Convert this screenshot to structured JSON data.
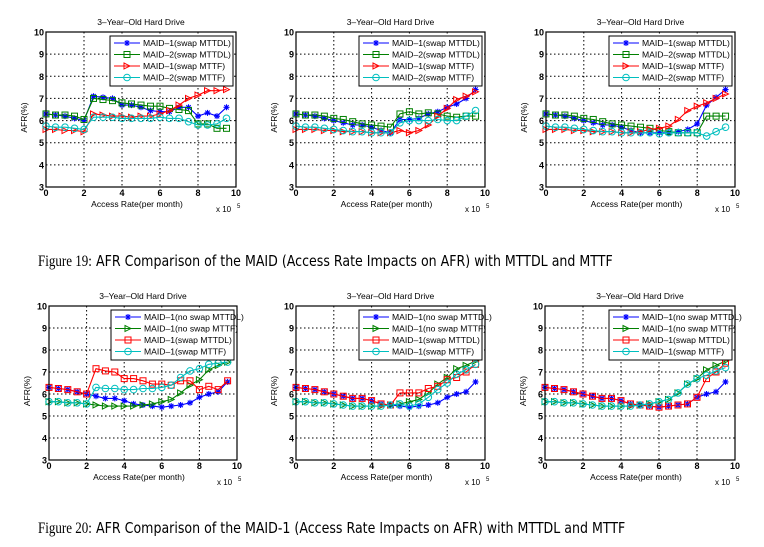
{
  "figures": [
    {
      "label": "Figure 19:",
      "text": "AFR Comparison of the MAID (Access Rate Impacts on AFR) with MTTDL and MTTF"
    },
    {
      "label": "Figure 20:",
      "text": "AFR Comparison of the MAID-1 (Access Rate Impacts on AFR) with MTTDL and MTTF"
    }
  ],
  "colors": {
    "blue": "#0000ff",
    "green": "#008000",
    "red": "#ff0000",
    "cyan": "#00bfbf"
  },
  "chart_data": [
    {
      "type": "line",
      "title": "3–Year–Old Hard Drive",
      "xlabel": "Access Rate(per month)",
      "ylabel": "AFR(%)",
      "x_multiplier": "x 10",
      "x_exponent": "5",
      "xlim": [
        0,
        10
      ],
      "ylim": [
        3,
        10
      ],
      "xticks": [
        "0",
        "2",
        "4",
        "6",
        "8",
        "10"
      ],
      "yticks": [
        "3",
        "4",
        "5",
        "6",
        "7",
        "8",
        "9",
        "10"
      ],
      "grid": true,
      "legend": "top-right",
      "x": [
        0,
        0.5,
        1,
        1.5,
        2,
        2.5,
        3,
        3.5,
        4,
        4.5,
        5,
        5.5,
        6,
        6.5,
        7,
        7.5,
        8,
        8.5,
        9,
        9.5
      ],
      "series": [
        {
          "name": "MAID–1(swap MTTDL)",
          "color": "#0000ff",
          "marker": "star",
          "values": [
            6.3,
            6.25,
            6.2,
            6.1,
            6.0,
            7.1,
            7.05,
            7.0,
            6.7,
            6.7,
            6.6,
            6.45,
            6.4,
            6.4,
            6.6,
            6.6,
            6.2,
            6.35,
            6.2,
            6.6
          ]
        },
        {
          "name": "MAID–2(swap MTTDL)",
          "color": "#008000",
          "marker": "square",
          "values": [
            6.3,
            6.25,
            6.25,
            6.2,
            6.05,
            7.0,
            6.95,
            6.9,
            6.8,
            6.75,
            6.7,
            6.65,
            6.65,
            6.55,
            6.5,
            6.45,
            5.85,
            5.85,
            5.65,
            5.65
          ]
        },
        {
          "name": "MAID–1(swap MTTF)",
          "color": "#ff0000",
          "marker": "triangle-right",
          "values": [
            5.6,
            5.6,
            5.55,
            5.55,
            5.5,
            6.3,
            6.25,
            6.2,
            6.2,
            6.15,
            6.2,
            6.2,
            6.3,
            6.45,
            6.7,
            7.0,
            7.15,
            7.35,
            7.35,
            7.4
          ]
        },
        {
          "name": "MAID–2(swap MTTF)",
          "color": "#00bfbf",
          "marker": "circle",
          "values": [
            5.75,
            5.7,
            5.7,
            5.65,
            5.6,
            6.15,
            6.15,
            6.15,
            6.1,
            6.1,
            6.1,
            6.1,
            6.15,
            6.1,
            6.1,
            5.95,
            5.8,
            5.8,
            5.85,
            6.1
          ]
        }
      ]
    },
    {
      "type": "line",
      "title": "3–Year–Old Hard Drive",
      "xlabel": "Access Rate(per month)",
      "ylabel": "AFR(%)",
      "x_multiplier": "x 10",
      "x_exponent": "5",
      "xlim": [
        0,
        10
      ],
      "ylim": [
        3,
        10
      ],
      "xticks": [
        "0",
        "2",
        "4",
        "6",
        "8",
        "10"
      ],
      "yticks": [
        "3",
        "4",
        "5",
        "6",
        "7",
        "8",
        "9",
        "10"
      ],
      "grid": true,
      "legend": "top-right",
      "x": [
        0,
        0.5,
        1,
        1.5,
        2,
        2.5,
        3,
        3.5,
        4,
        4.5,
        5,
        5.5,
        6,
        6.5,
        7,
        7.5,
        8,
        8.5,
        9,
        9.5
      ],
      "series": [
        {
          "name": "MAID–1(swap MTTDL)",
          "color": "#0000ff",
          "marker": "star",
          "values": [
            6.3,
            6.25,
            6.2,
            6.1,
            6.0,
            5.9,
            5.8,
            5.8,
            5.7,
            5.55,
            5.45,
            6.05,
            6.05,
            6.1,
            6.3,
            6.4,
            6.6,
            6.75,
            7.0,
            7.4
          ]
        },
        {
          "name": "MAID–2(swap MTTDL)",
          "color": "#008000",
          "marker": "square",
          "values": [
            6.3,
            6.25,
            6.25,
            6.2,
            6.1,
            6.05,
            5.95,
            5.85,
            5.8,
            5.75,
            5.7,
            6.3,
            6.4,
            6.3,
            6.35,
            6.3,
            6.2,
            6.15,
            6.2,
            6.2
          ]
        },
        {
          "name": "MAID–1(swap MTTF)",
          "color": "#ff0000",
          "marker": "triangle-right",
          "values": [
            5.6,
            5.6,
            5.6,
            5.55,
            5.55,
            5.5,
            5.5,
            5.5,
            5.45,
            5.45,
            5.45,
            5.55,
            5.45,
            5.55,
            5.8,
            6.2,
            6.55,
            6.95,
            7.1,
            7.3
          ]
        },
        {
          "name": "MAID–2(swap MTTF)",
          "color": "#00bfbf",
          "marker": "circle",
          "values": [
            5.75,
            5.7,
            5.7,
            5.65,
            5.6,
            5.55,
            5.5,
            5.5,
            5.45,
            5.45,
            5.45,
            5.9,
            6.0,
            6.0,
            6.0,
            6.05,
            6.0,
            6.0,
            6.2,
            6.45
          ]
        }
      ]
    },
    {
      "type": "line",
      "title": "3–Year–Old Hard Drive",
      "xlabel": "Access Rate(per month)",
      "ylabel": "AFR(%)",
      "x_multiplier": "x 10",
      "x_exponent": "5",
      "xlim": [
        0,
        10
      ],
      "ylim": [
        3,
        10
      ],
      "xticks": [
        "0",
        "2",
        "4",
        "6",
        "8",
        "10"
      ],
      "yticks": [
        "3",
        "4",
        "5",
        "6",
        "7",
        "8",
        "9",
        "10"
      ],
      "grid": true,
      "legend": "top-right",
      "x": [
        0,
        0.5,
        1,
        1.5,
        2,
        2.5,
        3,
        3.5,
        4,
        4.5,
        5,
        5.5,
        6,
        6.5,
        7,
        7.5,
        8,
        8.5,
        9,
        9.5
      ],
      "series": [
        {
          "name": "MAID–1(swap MTTDL)",
          "color": "#0000ff",
          "marker": "star",
          "values": [
            6.3,
            6.25,
            6.2,
            6.1,
            6.0,
            5.9,
            5.8,
            5.8,
            5.7,
            5.55,
            5.45,
            5.45,
            5.45,
            5.45,
            5.5,
            5.6,
            5.85,
            6.7,
            7.05,
            7.4
          ]
        },
        {
          "name": "MAID–2(swap MTTDL)",
          "color": "#008000",
          "marker": "square",
          "values": [
            6.3,
            6.25,
            6.25,
            6.2,
            6.1,
            6.05,
            5.95,
            5.85,
            5.8,
            5.75,
            5.7,
            5.65,
            5.55,
            5.5,
            5.45,
            5.45,
            5.45,
            6.2,
            6.2,
            6.2
          ]
        },
        {
          "name": "MAID–1(swap MTTF)",
          "color": "#ff0000",
          "marker": "triangle-right",
          "values": [
            5.6,
            5.6,
            5.6,
            5.55,
            5.55,
            5.5,
            5.5,
            5.5,
            5.45,
            5.45,
            5.5,
            5.6,
            5.65,
            5.75,
            6.05,
            6.45,
            6.65,
            6.8,
            7.0,
            7.2
          ]
        },
        {
          "name": "MAID–2(swap MTTF)",
          "color": "#00bfbf",
          "marker": "circle",
          "values": [
            5.75,
            5.7,
            5.7,
            5.65,
            5.6,
            5.55,
            5.5,
            5.5,
            5.45,
            5.45,
            5.45,
            5.45,
            5.4,
            5.45,
            5.45,
            5.45,
            5.45,
            5.3,
            5.5,
            5.7
          ]
        }
      ]
    },
    {
      "type": "line",
      "title": "3–Year–Old Hard Drive",
      "xlabel": "Access Rate(per month)",
      "ylabel": "AFR(%)",
      "x_multiplier": "x 10",
      "x_exponent": "5",
      "xlim": [
        0,
        10
      ],
      "ylim": [
        3,
        10
      ],
      "xticks": [
        "0",
        "2",
        "4",
        "6",
        "8",
        "10"
      ],
      "yticks": [
        "3",
        "4",
        "5",
        "6",
        "7",
        "8",
        "9",
        "10"
      ],
      "grid": true,
      "legend": "top-right",
      "x": [
        0,
        0.5,
        1,
        1.5,
        2,
        2.5,
        3,
        3.5,
        4,
        4.5,
        5,
        5.5,
        6,
        6.5,
        7,
        7.5,
        8,
        8.5,
        9,
        9.5
      ],
      "series": [
        {
          "name": "MAID–1(no swap MTTDL)",
          "color": "#0000ff",
          "marker": "star",
          "values": [
            6.3,
            6.25,
            6.2,
            6.1,
            6.0,
            5.9,
            5.8,
            5.8,
            5.7,
            5.55,
            5.5,
            5.45,
            5.4,
            5.45,
            5.5,
            5.6,
            5.85,
            6.0,
            6.1,
            6.55
          ]
        },
        {
          "name": "MAID–1(no swap MTTF)",
          "color": "#008000",
          "marker": "triangle-right",
          "values": [
            5.65,
            5.65,
            5.6,
            5.6,
            5.55,
            5.5,
            5.45,
            5.45,
            5.45,
            5.45,
            5.5,
            5.55,
            5.65,
            5.75,
            6.05,
            6.4,
            6.65,
            7.1,
            7.3,
            7.45
          ]
        },
        {
          "name": "MAID–1(swap MTTDL)",
          "color": "#ff0000",
          "marker": "square",
          "values": [
            6.3,
            6.25,
            6.2,
            6.1,
            6.0,
            7.15,
            7.05,
            7.0,
            6.7,
            6.7,
            6.6,
            6.45,
            6.45,
            6.4,
            6.6,
            6.6,
            6.2,
            6.35,
            6.2,
            6.6
          ]
        },
        {
          "name": "MAID–1(swap MTTF)",
          "color": "#00bfbf",
          "marker": "circle",
          "values": [
            5.65,
            5.65,
            5.6,
            5.6,
            5.55,
            6.3,
            6.25,
            6.25,
            6.2,
            6.2,
            6.25,
            6.25,
            6.3,
            6.4,
            6.75,
            7.05,
            7.15,
            7.35,
            7.4,
            7.45
          ]
        }
      ]
    },
    {
      "type": "line",
      "title": "3–Year–Old Hard Drive",
      "xlabel": "Access Rate(per month)",
      "ylabel": "AFR(%)",
      "x_multiplier": "x 10",
      "x_exponent": "5",
      "xlim": [
        0,
        10
      ],
      "ylim": [
        3,
        10
      ],
      "xticks": [
        "0",
        "2",
        "4",
        "6",
        "8",
        "10"
      ],
      "yticks": [
        "3",
        "4",
        "5",
        "6",
        "7",
        "8",
        "9",
        "10"
      ],
      "grid": true,
      "legend": "top-right",
      "x": [
        0,
        0.5,
        1,
        1.5,
        2,
        2.5,
        3,
        3.5,
        4,
        4.5,
        5,
        5.5,
        6,
        6.5,
        7,
        7.5,
        8,
        8.5,
        9,
        9.5
      ],
      "series": [
        {
          "name": "MAID–1(no swap MTTDL)",
          "color": "#0000ff",
          "marker": "star",
          "values": [
            6.3,
            6.25,
            6.2,
            6.1,
            6.0,
            5.9,
            5.8,
            5.8,
            5.7,
            5.55,
            5.5,
            5.45,
            5.4,
            5.45,
            5.5,
            5.6,
            5.85,
            6.0,
            6.1,
            6.55
          ]
        },
        {
          "name": "MAID–1(no swap MTTF)",
          "color": "#008000",
          "marker": "triangle-right",
          "values": [
            5.65,
            5.65,
            5.6,
            5.6,
            5.55,
            5.5,
            5.45,
            5.45,
            5.45,
            5.45,
            5.5,
            5.55,
            5.65,
            5.75,
            6.05,
            6.45,
            6.75,
            7.15,
            7.3,
            7.5
          ]
        },
        {
          "name": "MAID–1(swap MTTDL)",
          "color": "#ff0000",
          "marker": "square",
          "values": [
            6.3,
            6.25,
            6.2,
            6.1,
            6.0,
            5.9,
            5.8,
            5.8,
            5.7,
            5.55,
            5.5,
            6.05,
            6.05,
            6.05,
            6.25,
            6.35,
            6.65,
            6.75,
            7.0,
            7.35
          ]
        },
        {
          "name": "MAID–1(swap MTTF)",
          "color": "#00bfbf",
          "marker": "circle",
          "values": [
            5.65,
            5.65,
            5.6,
            5.6,
            5.55,
            5.5,
            5.45,
            5.45,
            5.45,
            5.45,
            5.5,
            5.55,
            5.45,
            5.55,
            5.85,
            6.2,
            6.5,
            6.9,
            7.1,
            7.35
          ]
        }
      ]
    },
    {
      "type": "line",
      "title": "3–Year–Old Hard Drive",
      "xlabel": "Access Rate(per month)",
      "ylabel": "AFR(%)",
      "x_multiplier": "x 10",
      "x_exponent": "5",
      "xlim": [
        0,
        10
      ],
      "ylim": [
        3,
        10
      ],
      "xticks": [
        "0",
        "2",
        "4",
        "6",
        "8",
        "10"
      ],
      "yticks": [
        "3",
        "4",
        "5",
        "6",
        "7",
        "8",
        "9",
        "10"
      ],
      "grid": true,
      "legend": "top-right",
      "x": [
        0,
        0.5,
        1,
        1.5,
        2,
        2.5,
        3,
        3.5,
        4,
        4.5,
        5,
        5.5,
        6,
        6.5,
        7,
        7.5,
        8,
        8.5,
        9,
        9.5
      ],
      "series": [
        {
          "name": "MAID–1(no swap MTTDL)",
          "color": "#0000ff",
          "marker": "star",
          "values": [
            6.3,
            6.25,
            6.2,
            6.1,
            6.0,
            5.9,
            5.8,
            5.8,
            5.7,
            5.55,
            5.5,
            5.45,
            5.4,
            5.45,
            5.5,
            5.55,
            5.85,
            6.0,
            6.1,
            6.55
          ]
        },
        {
          "name": "MAID–1(no swap MTTF)",
          "color": "#008000",
          "marker": "triangle-right",
          "values": [
            5.65,
            5.65,
            5.6,
            5.6,
            5.55,
            5.5,
            5.45,
            5.45,
            5.45,
            5.45,
            5.5,
            5.55,
            5.65,
            5.75,
            6.05,
            6.45,
            6.7,
            7.1,
            7.3,
            7.5
          ]
        },
        {
          "name": "MAID–1(swap MTTDL)",
          "color": "#ff0000",
          "marker": "square",
          "values": [
            6.3,
            6.25,
            6.2,
            6.1,
            6.0,
            5.9,
            5.8,
            5.8,
            5.7,
            5.55,
            5.5,
            5.45,
            5.4,
            5.45,
            5.5,
            5.55,
            5.85,
            6.7,
            7.0,
            7.4
          ]
        },
        {
          "name": "MAID–1(swap MTTF)",
          "color": "#00bfbf",
          "marker": "circle",
          "values": [
            5.65,
            5.65,
            5.6,
            5.6,
            5.55,
            5.5,
            5.45,
            5.45,
            5.45,
            5.45,
            5.5,
            5.55,
            5.65,
            5.75,
            6.05,
            6.45,
            6.7,
            6.85,
            7.05,
            7.2
          ]
        }
      ]
    }
  ]
}
